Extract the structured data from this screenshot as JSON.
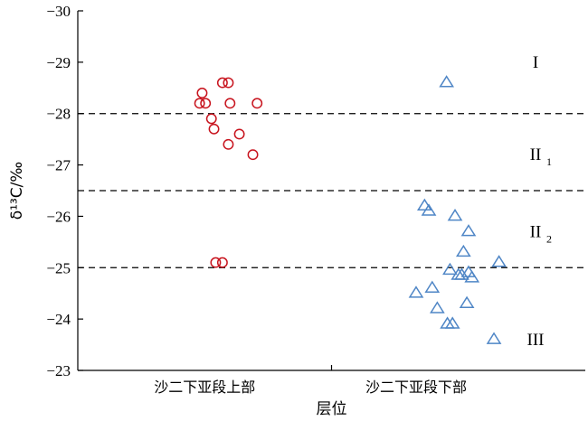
{
  "chart_data": {
    "type": "scatter",
    "title": "",
    "xlabel": "层位",
    "ylabel": "δ¹³C/‰",
    "ylim": [
      -23,
      -30
    ],
    "y_axis_inverted": true,
    "yticks": [
      "−30",
      "−29",
      "−28",
      "−27",
      "−26",
      "−25",
      "−24",
      "−23"
    ],
    "ytick_values": [
      -30,
      -29,
      -28,
      -27,
      -26,
      -25,
      -24,
      -23
    ],
    "categories": [
      "沙二下亚段上部",
      "沙二下亚段下部"
    ],
    "grid": false,
    "reference_lines": [
      -28,
      -26.5,
      -25
    ],
    "zones": [
      {
        "label": "I",
        "sub": "",
        "y": -29
      },
      {
        "label": "II",
        "sub": "1",
        "y": -27.2
      },
      {
        "label": "II",
        "sub": "2",
        "y": -25.7
      },
      {
        "label": "III",
        "sub": "",
        "y": -23.6
      }
    ],
    "series": [
      {
        "marker": "circle",
        "color": "#c8141e",
        "points": [
          {
            "x": 0.735,
            "y": -28.4
          },
          {
            "x": 0.72,
            "y": -28.2
          },
          {
            "x": 0.755,
            "y": -28.2
          },
          {
            "x": 0.855,
            "y": -28.6
          },
          {
            "x": 0.89,
            "y": -28.6
          },
          {
            "x": 0.9,
            "y": -28.2
          },
          {
            "x": 1.06,
            "y": -28.2
          },
          {
            "x": 0.79,
            "y": -27.9
          },
          {
            "x": 0.805,
            "y": -27.7
          },
          {
            "x": 0.955,
            "y": -27.6
          },
          {
            "x": 0.89,
            "y": -27.4
          },
          {
            "x": 1.035,
            "y": -27.2
          },
          {
            "x": 0.815,
            "y": -25.1
          },
          {
            "x": 0.855,
            "y": -25.1
          }
        ]
      },
      {
        "marker": "triangle",
        "color": "#4f86c6",
        "points": [
          {
            "x": 2.18,
            "y": -28.6
          },
          {
            "x": 2.05,
            "y": -26.2
          },
          {
            "x": 2.075,
            "y": -26.1
          },
          {
            "x": 2.23,
            "y": -26.0
          },
          {
            "x": 2.31,
            "y": -25.7
          },
          {
            "x": 2.28,
            "y": -25.3
          },
          {
            "x": 2.49,
            "y": -25.1
          },
          {
            "x": 2.2,
            "y": -24.95
          },
          {
            "x": 2.25,
            "y": -24.85
          },
          {
            "x": 2.27,
            "y": -24.85
          },
          {
            "x": 2.31,
            "y": -24.9
          },
          {
            "x": 2.33,
            "y": -24.8
          },
          {
            "x": 2.095,
            "y": -24.6
          },
          {
            "x": 2.0,
            "y": -24.5
          },
          {
            "x": 2.3,
            "y": -24.3
          },
          {
            "x": 2.125,
            "y": -24.2
          },
          {
            "x": 2.185,
            "y": -23.9
          },
          {
            "x": 2.215,
            "y": -23.9
          },
          {
            "x": 2.46,
            "y": -23.6
          }
        ]
      }
    ]
  }
}
